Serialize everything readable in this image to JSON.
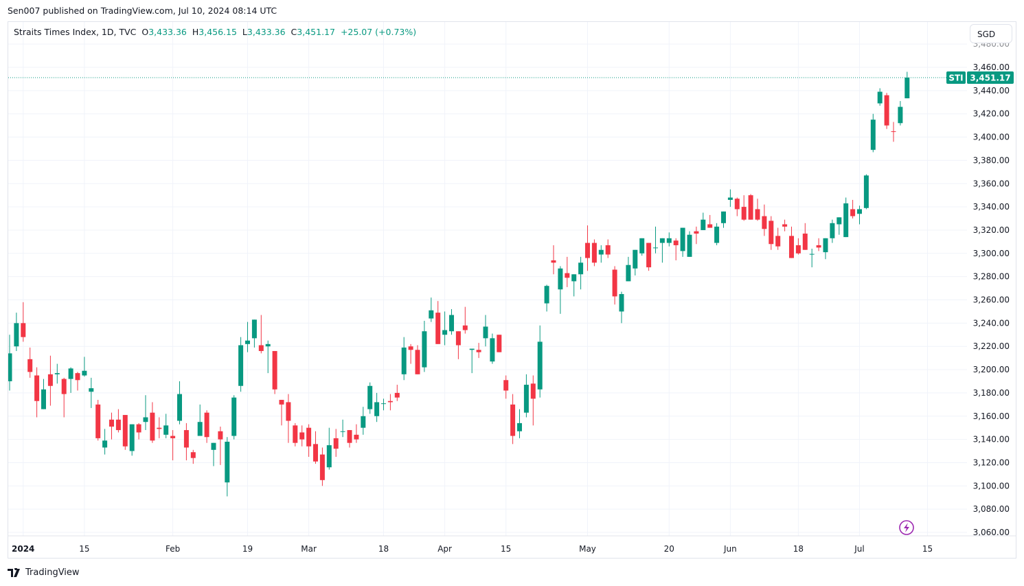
{
  "header": {
    "published": "Sen007 published on TradingView.com, Jul 10, 2024 08:14 UTC"
  },
  "legend": {
    "symbol": "Straits Times Index, 1D, TVC",
    "o_label": "O",
    "o": "3,433.36",
    "h_label": "H",
    "h": "3,456.15",
    "l_label": "L",
    "l": "3,433.36",
    "c_label": "C",
    "c": "3,451.17",
    "change": "+25.07 (+0.73%)"
  },
  "currency_button": "SGD",
  "price_tag": {
    "ticker": "STI",
    "price": "3,451.17",
    "value": 3451.17
  },
  "footer": {
    "brand": "TradingView"
  },
  "icons": {
    "lightning": "lightning-icon",
    "logo": "tradingview-logo-icon"
  },
  "colors": {
    "up": "#089981",
    "down": "#f23645",
    "grid": "#f0f3fa",
    "lightning": "#9c27b0"
  },
  "chart_data": {
    "type": "candlestick",
    "title": "Straits Times Index, 1D, TVC",
    "ylim": [
      3050,
      3490
    ],
    "y_ticks": [
      3060,
      3080,
      3100,
      3120,
      3140,
      3160,
      3180,
      3200,
      3220,
      3240,
      3260,
      3280,
      3300,
      3320,
      3340,
      3360,
      3380,
      3400,
      3420,
      3440,
      3460,
      3480
    ],
    "y_tick_labels": [
      "3,060.00",
      "3,080.00",
      "3,100.00",
      "3,120.00",
      "3,140.00",
      "3,160.00",
      "3,180.00",
      "3,200.00",
      "3,220.00",
      "3,240.00",
      "3,260.00",
      "3,280.00",
      "3,300.00",
      "3,320.00",
      "3,340.00",
      "3,360.00",
      "3,380.00",
      "3,400.00",
      "3,420.00",
      "3,440.00",
      "3,460.00",
      "3,480.00"
    ],
    "x_ticks": [
      {
        "bar": 2,
        "label": "2024",
        "bold": true
      },
      {
        "bar": 11,
        "label": "15"
      },
      {
        "bar": 24,
        "label": "Feb"
      },
      {
        "bar": 35,
        "label": "19"
      },
      {
        "bar": 44,
        "label": "Mar"
      },
      {
        "bar": 55,
        "label": "18"
      },
      {
        "bar": 64,
        "label": "Apr"
      },
      {
        "bar": 73,
        "label": "15"
      },
      {
        "bar": 85,
        "label": "May"
      },
      {
        "bar": 97,
        "label": "20"
      },
      {
        "bar": 106,
        "label": "Jun"
      },
      {
        "bar": 116,
        "label": "18"
      },
      {
        "bar": 125,
        "label": "Jul"
      },
      {
        "bar": 135,
        "label": "15"
      }
    ],
    "ohlc_fields": [
      "open",
      "high",
      "low",
      "close"
    ],
    "ohlc": [
      [
        3190,
        3230,
        3182,
        3214
      ],
      [
        3220,
        3249,
        3216,
        3240
      ],
      [
        3240,
        3258,
        3224,
        3228
      ],
      [
        3209,
        3219,
        3193,
        3198
      ],
      [
        3195,
        3202,
        3159,
        3173
      ],
      [
        3166,
        3192,
        3166,
        3183
      ],
      [
        3196,
        3212,
        3169,
        3186
      ],
      [
        3196,
        3205,
        3188,
        3197
      ],
      [
        3192,
        3193,
        3159,
        3179
      ],
      [
        3192,
        3202,
        3180,
        3201
      ],
      [
        3197,
        3198,
        3182,
        3191
      ],
      [
        3195,
        3211,
        3194,
        3199
      ],
      [
        3181,
        3193,
        3167,
        3184
      ],
      [
        3170,
        3174,
        3139,
        3141
      ],
      [
        3133,
        3149,
        3127,
        3139
      ],
      [
        3157,
        3163,
        3140,
        3151
      ],
      [
        3157,
        3166,
        3146,
        3148
      ],
      [
        3161,
        3161,
        3131,
        3134
      ],
      [
        3130,
        3153,
        3126,
        3153
      ],
      [
        3153,
        3154,
        3140,
        3146
      ],
      [
        3155,
        3178,
        3148,
        3159
      ],
      [
        3163,
        3172,
        3137,
        3139
      ],
      [
        3150,
        3159,
        3141,
        3149
      ],
      [
        3144,
        3162,
        3141,
        3152
      ],
      [
        3143,
        3148,
        3122,
        3141
      ],
      [
        3156,
        3190,
        3153,
        3179
      ],
      [
        3148,
        3154,
        3122,
        3133
      ],
      [
        3129,
        3131,
        3119,
        3124
      ],
      [
        3143,
        3170,
        3143,
        3155
      ],
      [
        3163,
        3165,
        3137,
        3142
      ],
      [
        3131,
        3137,
        3117,
        3137
      ],
      [
        3147,
        3151,
        3118,
        3140
      ],
      [
        3103,
        3142,
        3091,
        3138
      ],
      [
        3143,
        3178,
        3140,
        3176
      ],
      [
        3186,
        3228,
        3181,
        3221
      ],
      [
        3222,
        3241,
        3215,
        3225
      ],
      [
        3227,
        3243,
        3219,
        3243
      ],
      [
        3221,
        3247,
        3214,
        3216
      ],
      [
        3220,
        3225,
        3197,
        3222
      ],
      [
        3216,
        3216,
        3179,
        3183
      ],
      [
        3174,
        3174,
        3152,
        3170
      ],
      [
        3172,
        3179,
        3137,
        3156
      ],
      [
        3152,
        3154,
        3134,
        3137
      ],
      [
        3146,
        3152,
        3134,
        3140
      ],
      [
        3150,
        3153,
        3125,
        3134
      ],
      [
        3136,
        3147,
        3119,
        3121
      ],
      [
        3127,
        3133,
        3100,
        3105
      ],
      [
        3116,
        3150,
        3114,
        3135
      ],
      [
        3141,
        3149,
        3125,
        3132
      ],
      [
        3147,
        3157,
        3142,
        3147
      ],
      [
        3148,
        3148,
        3133,
        3137
      ],
      [
        3144,
        3153,
        3137,
        3140
      ],
      [
        3150,
        3168,
        3144,
        3160
      ],
      [
        3166,
        3189,
        3162,
        3186
      ],
      [
        3160,
        3180,
        3155,
        3172
      ],
      [
        3171,
        3175,
        3165,
        3171
      ],
      [
        3173,
        3179,
        3165,
        3172
      ],
      [
        3180,
        3187,
        3173,
        3176
      ],
      [
        3196,
        3228,
        3191,
        3219
      ],
      [
        3220,
        3222,
        3205,
        3217
      ],
      [
        3217,
        3221,
        3196,
        3196
      ],
      [
        3202,
        3242,
        3198,
        3233
      ],
      [
        3244,
        3262,
        3241,
        3251
      ],
      [
        3249,
        3259,
        3222,
        3222
      ],
      [
        3230,
        3250,
        3221,
        3234
      ],
      [
        3233,
        3252,
        3230,
        3247
      ],
      [
        3233,
        3233,
        3209,
        3221
      ],
      [
        3238,
        3254,
        3231,
        3234
      ],
      [
        3217,
        3218,
        3197,
        3218
      ],
      [
        3217,
        3223,
        3210,
        3215
      ],
      [
        3227,
        3247,
        3220,
        3237
      ],
      [
        3207,
        3231,
        3205,
        3227
      ],
      [
        3230,
        3230,
        3215,
        3215
      ],
      [
        3191,
        3195,
        3175,
        3182
      ],
      [
        3170,
        3179,
        3136,
        3143
      ],
      [
        3147,
        3166,
        3141,
        3154
      ],
      [
        3163,
        3196,
        3159,
        3187
      ],
      [
        3188,
        3195,
        3152,
        3175
      ],
      [
        3183,
        3238,
        3176,
        3224
      ],
      [
        3257,
        3273,
        3250,
        3272
      ],
      [
        3294,
        3307,
        3282,
        3292
      ],
      [
        3269,
        3289,
        3248,
        3287
      ],
      [
        3283,
        3297,
        3271,
        3279
      ],
      [
        3276,
        3282,
        3263,
        3282
      ],
      [
        3282,
        3297,
        3269,
        3292
      ],
      [
        3309,
        3324,
        3285,
        3296
      ],
      [
        3309,
        3312,
        3289,
        3292
      ],
      [
        3299,
        3307,
        3292,
        3303
      ],
      [
        3307,
        3312,
        3296,
        3299
      ],
      [
        3286,
        3289,
        3256,
        3263
      ],
      [
        3250,
        3267,
        3240,
        3265
      ],
      [
        3276,
        3297,
        3276,
        3290
      ],
      [
        3287,
        3303,
        3281,
        3303
      ],
      [
        3300,
        3313,
        3298,
        3313
      ],
      [
        3309,
        3309,
        3285,
        3288
      ],
      [
        3305,
        3323,
        3300,
        3305
      ],
      [
        3309,
        3313,
        3292,
        3313
      ],
      [
        3309,
        3318,
        3306,
        3313
      ],
      [
        3311,
        3313,
        3294,
        3307
      ],
      [
        3302,
        3322,
        3297,
        3322
      ],
      [
        3297,
        3319,
        3297,
        3316
      ],
      [
        3319,
        3323,
        3308,
        3317
      ],
      [
        3320,
        3335,
        3320,
        3329
      ],
      [
        3325,
        3333,
        3322,
        3322
      ],
      [
        3309,
        3326,
        3307,
        3323
      ],
      [
        3326,
        3336,
        3322,
        3336
      ],
      [
        3346,
        3355,
        3340,
        3348
      ],
      [
        3347,
        3348,
        3332,
        3338
      ],
      [
        3340,
        3350,
        3328,
        3329
      ],
      [
        3350,
        3351,
        3329,
        3329
      ],
      [
        3338,
        3347,
        3328,
        3329
      ],
      [
        3332,
        3342,
        3315,
        3321
      ],
      [
        3328,
        3332,
        3303,
        3308
      ],
      [
        3315,
        3322,
        3303,
        3306
      ],
      [
        3325,
        3329,
        3319,
        3323
      ],
      [
        3315,
        3323,
        3296,
        3296
      ],
      [
        3307,
        3313,
        3299,
        3300
      ],
      [
        3317,
        3326,
        3303,
        3303
      ],
      [
        3299,
        3304,
        3288,
        3299.5
      ],
      [
        3307,
        3313,
        3302,
        3305
      ],
      [
        3301,
        3313,
        3295,
        3313
      ],
      [
        3313,
        3329,
        3309,
        3326
      ],
      [
        3325,
        3331,
        3316,
        3331
      ],
      [
        3314,
        3348,
        3314,
        3343
      ],
      [
        3338,
        3346,
        3330,
        3332
      ],
      [
        3334,
        3341,
        3325,
        3338
      ],
      [
        3339,
        3368,
        3338,
        3367
      ],
      [
        3389,
        3420,
        3387,
        3415
      ],
      [
        3429,
        3442,
        3427,
        3439
      ],
      [
        3436,
        3438,
        3407,
        3410
      ],
      [
        3405,
        3413,
        3396,
        3404.5
      ],
      [
        3412,
        3431,
        3410,
        3426
      ],
      [
        3433.36,
        3456.15,
        3433.36,
        3451.17
      ]
    ]
  }
}
